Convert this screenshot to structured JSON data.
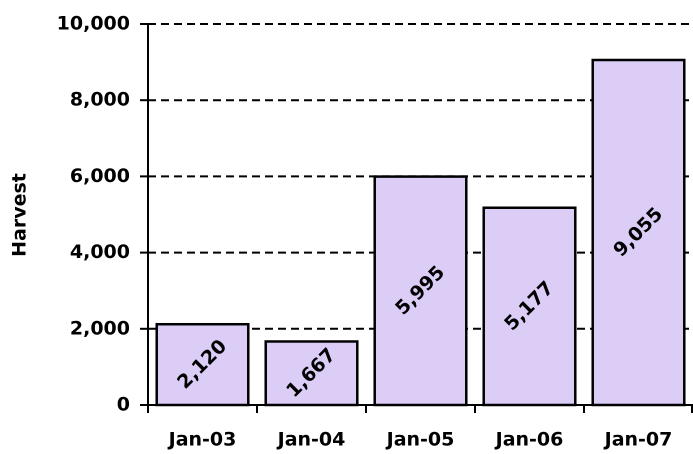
{
  "chart_data": {
    "type": "bar",
    "y_label": "Harvest",
    "categories": [
      "Jan-03",
      "Jan-04",
      "Jan-05",
      "Jan-06",
      "Jan-07"
    ],
    "values": [
      2120,
      1667,
      5995,
      5177,
      9055
    ],
    "value_labels": [
      "2,120",
      "1,667",
      "5,995",
      "5,177",
      "9,055"
    ],
    "color": "#dccdf7",
    "ylim": [
      0,
      10000
    ],
    "yticks": [
      0,
      {
        "value": 2000,
        "label": "2,000"
      },
      {
        "value": 4000,
        "label": "4,000"
      },
      {
        "value": 6000,
        "label": "6,000"
      },
      {
        "value": 8000,
        "label": "8,000"
      },
      {
        "value": 10000,
        "label": "10,000"
      }
    ],
    "grid": true
  }
}
